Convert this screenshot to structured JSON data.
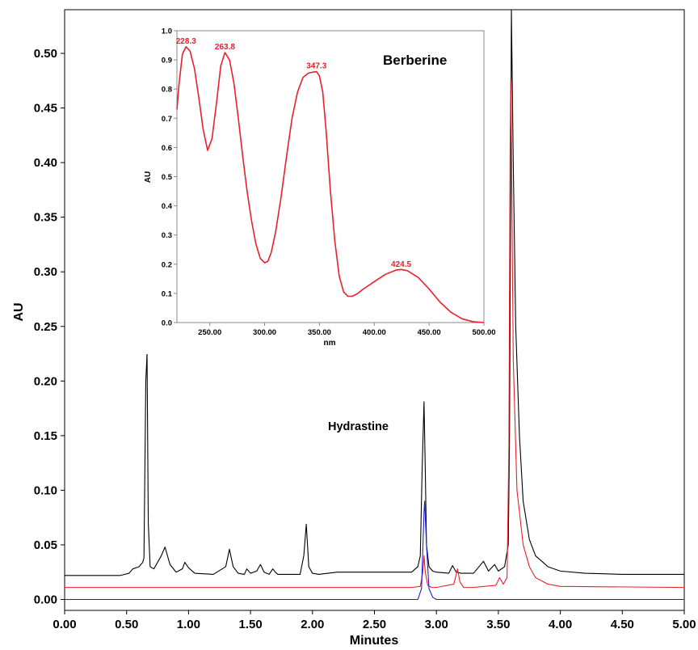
{
  "chart_data": [
    {
      "type": "line",
      "xlabel": "Minutes",
      "ylabel": "AU",
      "xlim": [
        0,
        5
      ],
      "ylim": [
        -0.01,
        0.54
      ],
      "x_ticks": [
        "0.00",
        "0.50",
        "1.00",
        "1.50",
        "2.00",
        "2.50",
        "3.00",
        "3.50",
        "4.00",
        "4.50",
        "5.00"
      ],
      "y_ticks": [
        "0.00",
        "0.05",
        "0.10",
        "0.15",
        "0.20",
        "0.25",
        "0.30",
        "0.35",
        "0.40",
        "0.45",
        "0.50"
      ],
      "annotations": [
        "Hydrastine",
        "Berberine"
      ],
      "series": [
        {
          "color": "#000000",
          "baseline": 0.022,
          "x": [
            0,
            0.45,
            0.52,
            0.55,
            0.6,
            0.63,
            0.64,
            0.655,
            0.665,
            0.675,
            0.69,
            0.72,
            0.78,
            0.81,
            0.85,
            0.9,
            0.95,
            0.97,
            1.0,
            1.05,
            1.2,
            1.3,
            1.33,
            1.36,
            1.4,
            1.45,
            1.47,
            1.5,
            1.55,
            1.58,
            1.61,
            1.65,
            1.68,
            1.7,
            1.72,
            1.8,
            1.9,
            1.93,
            1.95,
            1.97,
            2.0,
            2.05,
            2.2,
            2.6,
            2.8,
            2.85,
            2.87,
            2.885,
            2.9,
            2.91,
            2.92,
            2.94,
            2.97,
            3.0,
            3.1,
            3.13,
            3.16,
            3.2,
            3.3,
            3.38,
            3.42,
            3.47,
            3.5,
            3.55,
            3.58,
            3.59,
            3.6,
            3.605,
            3.62,
            3.64,
            3.67,
            3.7,
            3.75,
            3.8,
            3.9,
            4.0,
            4.2,
            4.5,
            5.0
          ],
          "y": [
            0.022,
            0.022,
            0.024,
            0.028,
            0.03,
            0.034,
            0.038,
            0.2,
            0.225,
            0.07,
            0.03,
            0.028,
            0.04,
            0.048,
            0.032,
            0.025,
            0.028,
            0.034,
            0.029,
            0.024,
            0.023,
            0.03,
            0.046,
            0.03,
            0.024,
            0.023,
            0.028,
            0.024,
            0.026,
            0.032,
            0.025,
            0.023,
            0.028,
            0.025,
            0.023,
            0.023,
            0.023,
            0.04,
            0.069,
            0.03,
            0.024,
            0.023,
            0.025,
            0.025,
            0.025,
            0.03,
            0.04,
            0.12,
            0.181,
            0.12,
            0.05,
            0.03,
            0.026,
            0.025,
            0.024,
            0.031,
            0.025,
            0.024,
            0.024,
            0.035,
            0.026,
            0.032,
            0.026,
            0.03,
            0.05,
            0.15,
            0.4,
            0.54,
            0.4,
            0.25,
            0.15,
            0.09,
            0.055,
            0.04,
            0.03,
            0.026,
            0.024,
            0.023,
            0.023
          ]
        },
        {
          "color": "#e8202a",
          "baseline": 0.011,
          "x": [
            0,
            2.8,
            2.87,
            2.89,
            2.9,
            2.91,
            2.93,
            2.96,
            3.0,
            3.14,
            3.16,
            3.17,
            3.19,
            3.22,
            3.3,
            3.48,
            3.51,
            3.54,
            3.57,
            3.585,
            3.595,
            3.6,
            3.605,
            3.62,
            3.65,
            3.7,
            3.75,
            3.8,
            3.9,
            4.0,
            5.0
          ],
          "y": [
            0.011,
            0.011,
            0.012,
            0.025,
            0.04,
            0.025,
            0.013,
            0.011,
            0.011,
            0.014,
            0.023,
            0.028,
            0.016,
            0.011,
            0.011,
            0.013,
            0.02,
            0.014,
            0.02,
            0.14,
            0.42,
            0.475,
            0.42,
            0.22,
            0.1,
            0.05,
            0.03,
            0.02,
            0.014,
            0.012,
            0.011
          ]
        },
        {
          "color": "#2020cc",
          "baseline": 0.0,
          "x": [
            0,
            2.85,
            2.88,
            2.9,
            2.905,
            2.92,
            2.94,
            2.97,
            3.0,
            3.5,
            3.6,
            5.0
          ],
          "y": [
            0.0,
            0.0,
            0.01,
            0.08,
            0.09,
            0.05,
            0.01,
            0.002,
            0.0,
            0.0,
            0.0,
            0.0
          ]
        }
      ]
    },
    {
      "type": "line",
      "xlabel": "nm",
      "ylabel": "AU",
      "xlim": [
        220,
        500
      ],
      "ylim": [
        0,
        1.0
      ],
      "x_ticks": [
        "250.00",
        "300.00",
        "350.00",
        "400.00",
        "450.00",
        "500.00"
      ],
      "y_ticks": [
        "0.0",
        "0.1",
        "0.2",
        "0.3",
        "0.4",
        "0.5",
        "0.6",
        "0.7",
        "0.8",
        "0.9",
        "1.0"
      ],
      "peak_labels": [
        {
          "x": 228.3,
          "y": 0.945,
          "label": "228.3"
        },
        {
          "x": 263.8,
          "y": 0.925,
          "label": "263.8"
        },
        {
          "x": 347.3,
          "y": 0.86,
          "label": "347.3"
        },
        {
          "x": 424.5,
          "y": 0.18,
          "label": "424.5"
        }
      ],
      "series": [
        {
          "color": "#e8202a",
          "x": [
            220,
            222,
            225,
            228.3,
            232,
            236,
            240,
            244,
            248,
            252,
            256,
            260,
            263.8,
            268,
            272,
            276,
            280,
            284,
            288,
            292,
            296,
            300,
            303,
            306,
            310,
            315,
            320,
            325,
            330,
            335,
            340,
            344,
            347.3,
            350,
            353,
            356,
            360,
            364,
            368,
            372,
            376,
            380,
            385,
            390,
            400,
            410,
            420,
            424.5,
            430,
            440,
            450,
            460,
            470,
            480,
            490,
            500
          ],
          "y": [
            0.73,
            0.82,
            0.92,
            0.945,
            0.93,
            0.87,
            0.77,
            0.66,
            0.59,
            0.63,
            0.75,
            0.88,
            0.925,
            0.9,
            0.82,
            0.7,
            0.57,
            0.45,
            0.35,
            0.27,
            0.22,
            0.205,
            0.21,
            0.24,
            0.31,
            0.43,
            0.57,
            0.7,
            0.79,
            0.84,
            0.855,
            0.858,
            0.86,
            0.845,
            0.79,
            0.66,
            0.45,
            0.28,
            0.16,
            0.105,
            0.09,
            0.09,
            0.1,
            0.115,
            0.14,
            0.165,
            0.18,
            0.182,
            0.178,
            0.155,
            0.115,
            0.07,
            0.035,
            0.013,
            0.003,
            0.0
          ]
        }
      ]
    }
  ]
}
